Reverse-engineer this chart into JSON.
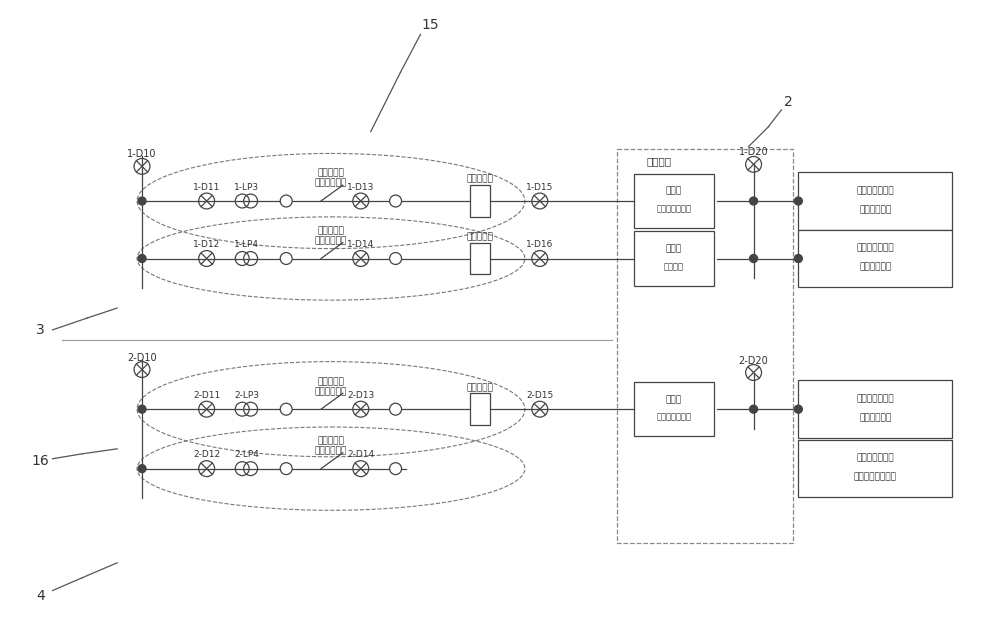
{
  "bg_color": "#ffffff",
  "line_color": "#444444",
  "fig_width": 10.0,
  "fig_height": 6.33,
  "label_15": "15",
  "label_2": "2",
  "label_3": "3",
  "label_16": "16",
  "label_4": "4",
  "yici_text": "一次机构",
  "set1_open_label": "第一套分闸\n逻辑判断接点",
  "set1_close_label": "第一套合闸\n逻辑判断接点",
  "set2_open_label": "第二套分闸\n逻辑判断接点",
  "set2_close_label": "第三套合闸\n逻辑判断接点",
  "fen_relay": "分闸继电器",
  "he_relay": "合闸继电器",
  "box1_lines": [
    "断路器",
    "第一套分闸线圈"
  ],
  "box2_lines": [
    "断路器",
    "合闸线圈"
  ],
  "box3_lines": [
    "断路器",
    "第二套分闸线圈"
  ],
  "rb1_lines": [
    "第一套智能终端",
    "分闸出口回路"
  ],
  "rb2_lines": [
    "第一套智能终端",
    "合闸出口回路"
  ],
  "rb3_lines": [
    "第二套智能终端",
    "分闸出口回路"
  ],
  "rb4_lines": [
    "第二套智能终端",
    "合闸逻辑判断接点"
  ]
}
